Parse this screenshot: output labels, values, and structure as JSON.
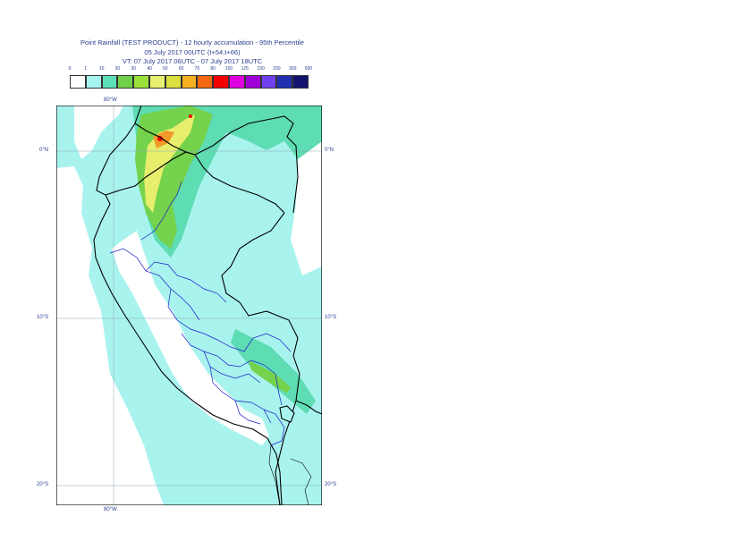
{
  "header": {
    "title_line1": "Point Rainfall (TEST PRODUCT) - 12 hourly accumulation - 95th Percentile",
    "title_line2": "05 July 2017 00UTC (t+54,t+66)",
    "title_line3": "VT: 07 July 2017 06UTC - 07 July 2017 18UTC"
  },
  "legend": {
    "thresholds": [
      "0",
      "1",
      "10",
      "20",
      "30",
      "40",
      "50",
      "60",
      "70",
      "80",
      "100",
      "125",
      "150",
      "200",
      "300",
      "500"
    ],
    "colors": [
      "#ffffff",
      "#a6f4f0",
      "#5ce0b8",
      "#6fd04a",
      "#9ae03a",
      "#e8f070",
      "#dce040",
      "#f4b020",
      "#f46a10",
      "#f40000",
      "#e000e0",
      "#a000d8",
      "#7040f0",
      "#2030b0",
      "#141470"
    ]
  },
  "map": {
    "colors": {
      "ocean_light": "#a9f3ee",
      "land_teal": "#5edcb4",
      "green": "#74d24c",
      "yellow": "#e6ee6c",
      "orange": "#f09a28",
      "red": "#f00000",
      "country_border": "#000000",
      "region_border": "#1a1acc"
    },
    "axis_labels": {
      "lon_top": "80°W",
      "lon_bottom": "80°W",
      "lat_0_left": "0°N",
      "lat_0_right": "0°N",
      "lat_10_left": "10°S",
      "lat_10_right": "10°S",
      "lat_20_left": "20°S",
      "lat_20_right": "20°S"
    }
  }
}
